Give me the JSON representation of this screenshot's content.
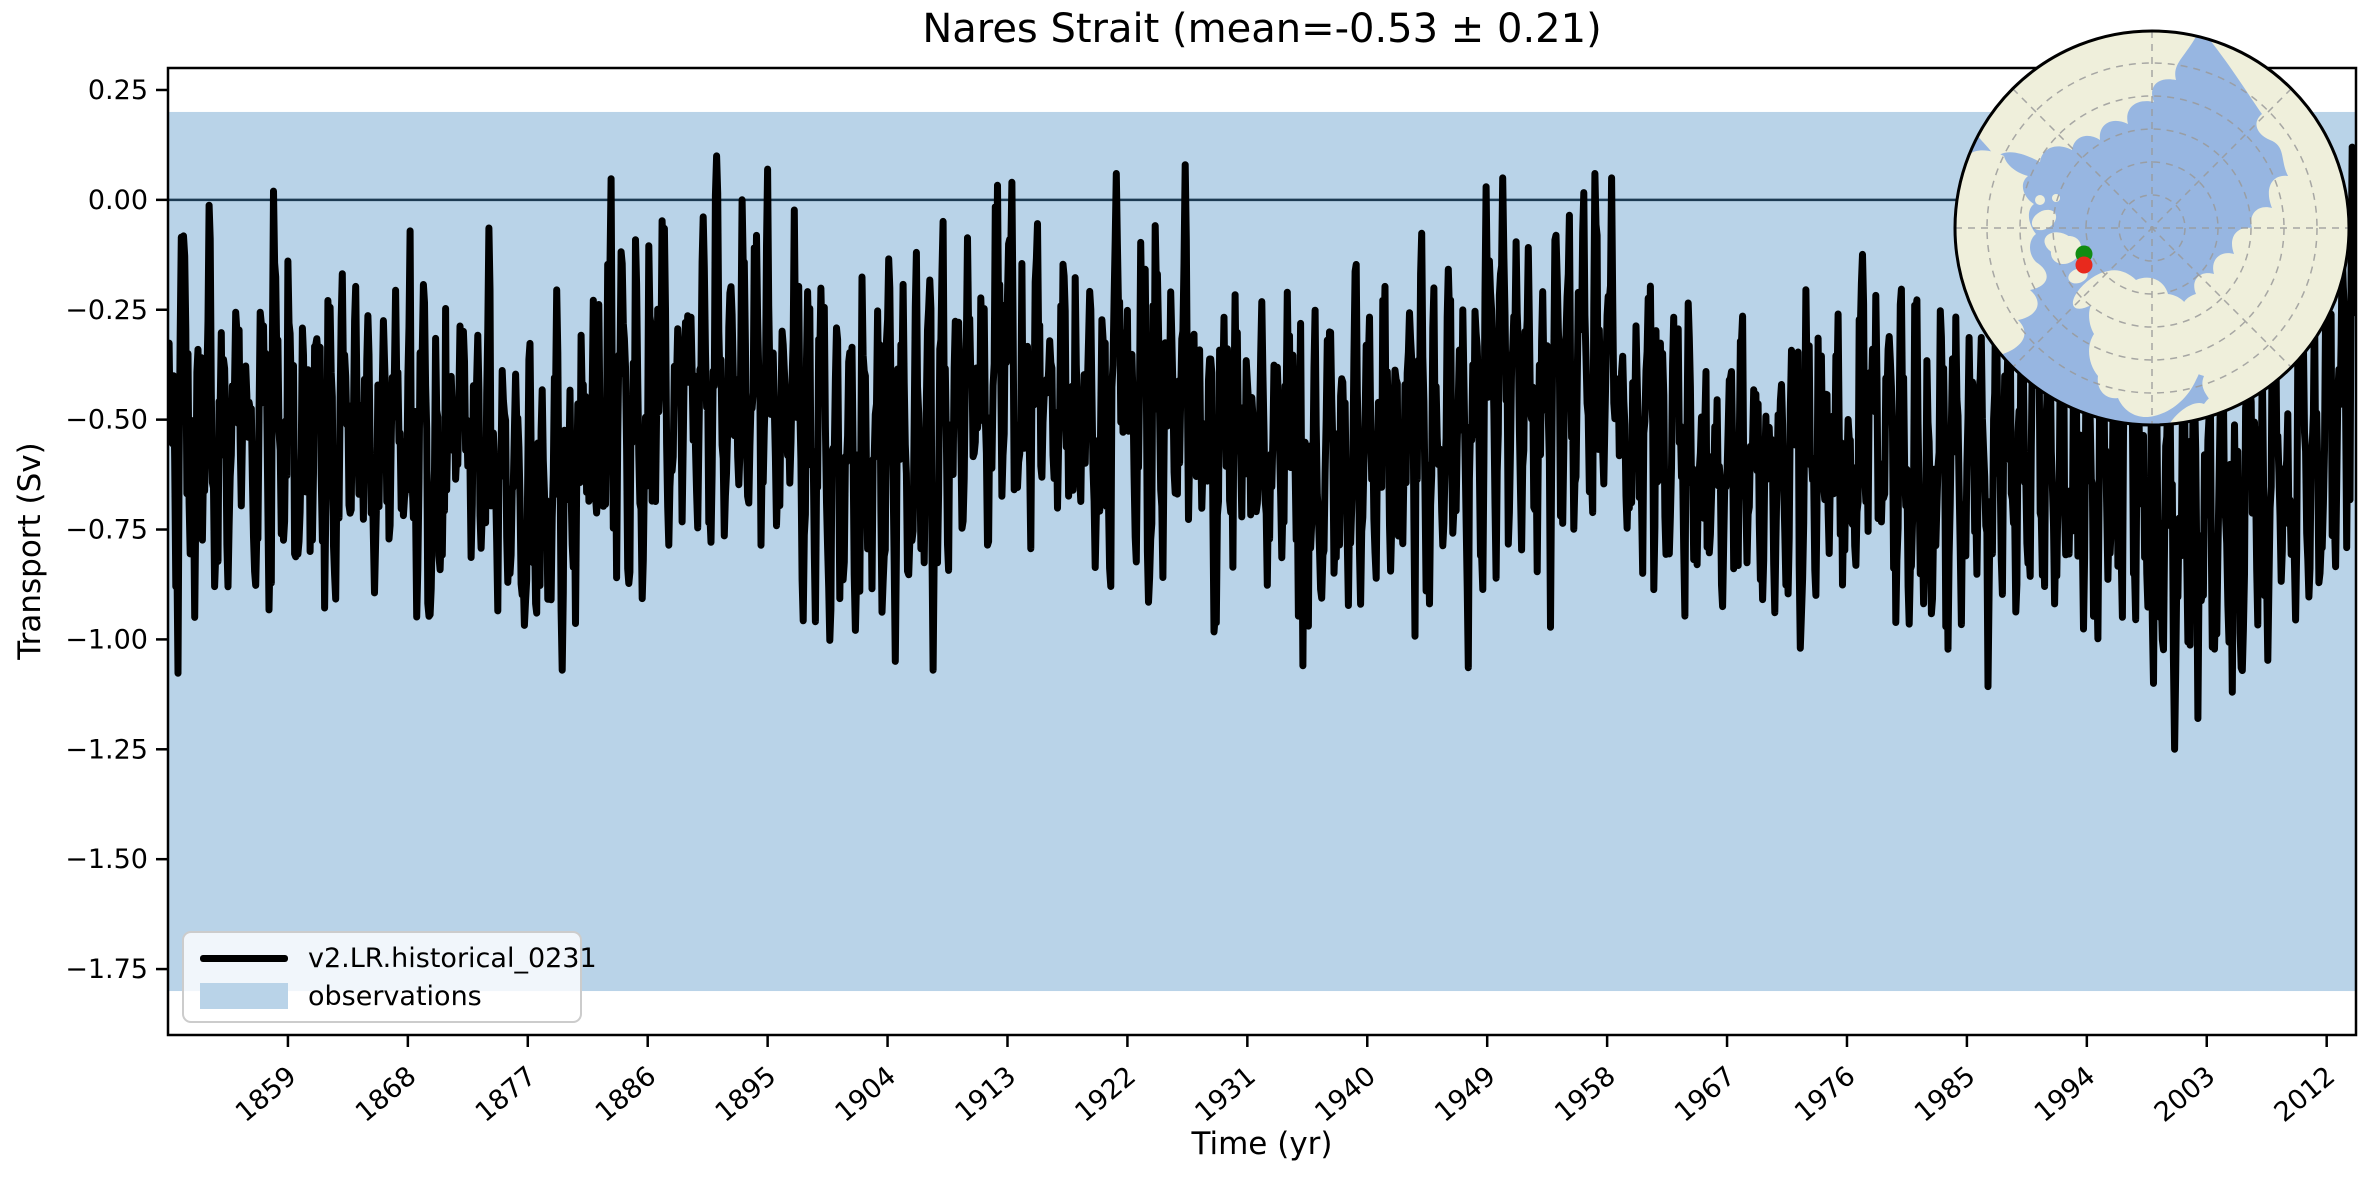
{
  "figure": {
    "title": "Nares Strait (mean=-0.53 ± 0.21)",
    "xlabel": "Time (yr)",
    "ylabel": "Transport (Sv)"
  },
  "legend": {
    "entries": [
      {
        "label": "v2.LR.historical_0231",
        "swatch": "line",
        "color": "#000000"
      },
      {
        "label": "observations",
        "swatch": "patch",
        "color": "#b9d3e8"
      }
    ]
  },
  "chart_data": {
    "type": "line",
    "title": "Nares Strait (mean=-0.53 ± 0.21)",
    "xlabel": "Time (yr)",
    "ylabel": "Transport (Sv)",
    "xlim": [
      1850,
      2014.2
    ],
    "ylim": [
      -1.9,
      0.3
    ],
    "grid": false,
    "legend_position": "lower left",
    "x_ticks": [
      1859,
      1868,
      1877,
      1886,
      1895,
      1904,
      1913,
      1922,
      1931,
      1940,
      1949,
      1958,
      1967,
      1976,
      1985,
      1994,
      2003,
      2012
    ],
    "x_tick_rotation_deg": 40,
    "y_ticks": [
      {
        "v": 0.25,
        "label": "0.25"
      },
      {
        "v": 0.0,
        "label": "0.00"
      },
      {
        "v": -0.25,
        "label": "−0.25"
      },
      {
        "v": -0.5,
        "label": "−0.50"
      },
      {
        "v": -0.75,
        "label": "−0.75"
      },
      {
        "v": -1.0,
        "label": "−1.00"
      },
      {
        "v": -1.25,
        "label": "−1.25"
      },
      {
        "v": -1.5,
        "label": "−1.50"
      },
      {
        "v": -1.75,
        "label": "−1.75"
      }
    ],
    "zero_line": {
      "y": 0.0,
      "color": "#1c3a52",
      "width": 2.5
    },
    "observations_band": {
      "label": "observations",
      "ymin": -1.8,
      "ymax": 0.2,
      "color": "#b9d3e8"
    },
    "series": [
      {
        "name": "v2.LR.historical_0231",
        "color": "#000000",
        "line_width": 7,
        "time_start": 1850.0,
        "time_end": 2014.083,
        "cadence": "monthly",
        "n_points": 1970,
        "mean": -0.53,
        "std": 0.21,
        "min": -1.26,
        "max": 0.12,
        "base_points": [
          [
            1850,
            -0.44
          ],
          [
            1854,
            -0.52
          ],
          [
            1858,
            -0.55
          ],
          [
            1862,
            -0.55
          ],
          [
            1866,
            -0.57
          ],
          [
            1870,
            -0.52
          ],
          [
            1874,
            -0.55
          ],
          [
            1878,
            -0.64
          ],
          [
            1881,
            -0.6
          ],
          [
            1885,
            -0.48
          ],
          [
            1889,
            -0.44
          ],
          [
            1892,
            -0.42
          ],
          [
            1896,
            -0.5
          ],
          [
            1900,
            -0.55
          ],
          [
            1904,
            -0.62
          ],
          [
            1908,
            -0.52
          ],
          [
            1912,
            -0.46
          ],
          [
            1916,
            -0.48
          ],
          [
            1920,
            -0.46
          ],
          [
            1924,
            -0.46
          ],
          [
            1928,
            -0.52
          ],
          [
            1932,
            -0.58
          ],
          [
            1936,
            -0.6
          ],
          [
            1940,
            -0.55
          ],
          [
            1944,
            -0.54
          ],
          [
            1948,
            -0.5
          ],
          [
            1952,
            -0.44
          ],
          [
            1956,
            -0.44
          ],
          [
            1960,
            -0.52
          ],
          [
            1964,
            -0.58
          ],
          [
            1968,
            -0.6
          ],
          [
            1972,
            -0.6
          ],
          [
            1976,
            -0.56
          ],
          [
            1980,
            -0.6
          ],
          [
            1984,
            -0.6
          ],
          [
            1988,
            -0.58
          ],
          [
            1992,
            -0.55
          ],
          [
            1996,
            -0.62
          ],
          [
            2000,
            -0.72
          ],
          [
            2004,
            -0.68
          ],
          [
            2008,
            -0.62
          ],
          [
            2012,
            -0.55
          ],
          [
            2014.2,
            -0.4
          ]
        ],
        "seasonal_amplitude": 0.2,
        "noise": {
          "type": "ar1",
          "phi": 0.35,
          "sigma": 0.13,
          "seed": 42
        },
        "extremes": [
          [
            1852.0,
            -0.95
          ],
          [
            1857.9,
            0.02
          ],
          [
            1879.6,
            -1.07
          ],
          [
            1891.2,
            0.1
          ],
          [
            1895.0,
            0.07
          ],
          [
            1904.6,
            -1.05
          ],
          [
            1907.4,
            -1.07
          ],
          [
            1913.3,
            0.04
          ],
          [
            1921.2,
            0.06
          ],
          [
            1926.3,
            0.08
          ],
          [
            1935.2,
            -1.06
          ],
          [
            1948.9,
            0.03
          ],
          [
            1950.2,
            0.05
          ],
          [
            1957.1,
            0.06
          ],
          [
            1958.3,
            0.05
          ],
          [
            1972.5,
            -1.02
          ],
          [
            1999.0,
            -1.1
          ],
          [
            2000.6,
            -1.25
          ],
          [
            2002.3,
            -1.18
          ],
          [
            2004.9,
            -1.12
          ],
          [
            2013.9,
            0.12
          ]
        ]
      }
    ]
  },
  "map_inset": {
    "projection": "north-polar",
    "ocean_color": "#97b6e1",
    "land_color": "#efefdb",
    "graticule_color": "#9a9a9a",
    "border_color": "#000000",
    "marker_green": "#128c12",
    "marker_red": "#e8291d",
    "marker_location": "Nares Strait"
  }
}
